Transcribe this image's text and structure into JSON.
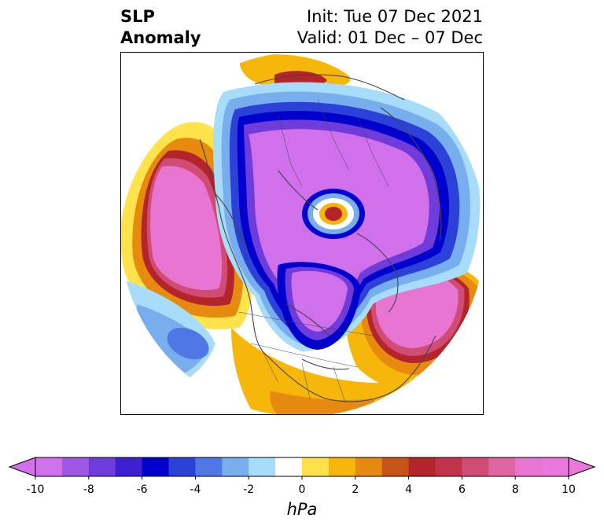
{
  "header": {
    "left_line1": "SLP",
    "left_line2": "Anomaly",
    "right_line1": "Init: Tue 07 Dec 2021",
    "right_line2": "Valid: 01 Dec – 07 Dec"
  },
  "map": {
    "projection": "north polar stereographic",
    "field": "sea level pressure anomaly",
    "features": [
      {
        "name": "north-pacific-high",
        "sign": "positive",
        "peak_hpa": 10
      },
      {
        "name": "north-atlantic-high",
        "sign": "positive",
        "peak_hpa": 10
      },
      {
        "name": "arctic-eurasia-low",
        "sign": "negative",
        "peak_hpa": -10
      },
      {
        "name": "canada-greenland-low",
        "sign": "negative",
        "peak_hpa": -10
      },
      {
        "name": "arctic-ocean-high",
        "sign": "positive",
        "peak_hpa": 6
      },
      {
        "name": "siberia-high",
        "sign": "positive",
        "peak_hpa": 6
      },
      {
        "name": "tropical-pacific-low",
        "sign": "negative",
        "peak_hpa": -4
      }
    ]
  },
  "colorbar": {
    "unit": "hPa",
    "min": -10,
    "max": 10,
    "ticks": [
      "-10",
      "-8",
      "-6",
      "-4",
      "-2",
      "0",
      "2",
      "4",
      "6",
      "8",
      "10"
    ],
    "levels": [
      -10,
      -9,
      -8,
      -7,
      -6,
      -5,
      -4,
      -3,
      -2,
      -1,
      1,
      2,
      3,
      4,
      5,
      6,
      7,
      8,
      9,
      10
    ],
    "colors": [
      "#d170ec",
      "#9f58e3",
      "#6f3cdb",
      "#3e1fd1",
      "#0000cd",
      "#2b41d8",
      "#5077e6",
      "#79aeee",
      "#a8dcfb",
      "#ffffff",
      "#ffe34c",
      "#f6b60a",
      "#e68a10",
      "#c75416",
      "#b3252a",
      "#c2334b",
      "#d14c74",
      "#df65a1",
      "#e875d2",
      "#ea77dd"
    ],
    "under_color": "#d46eee",
    "over_color": "#e979d9"
  }
}
